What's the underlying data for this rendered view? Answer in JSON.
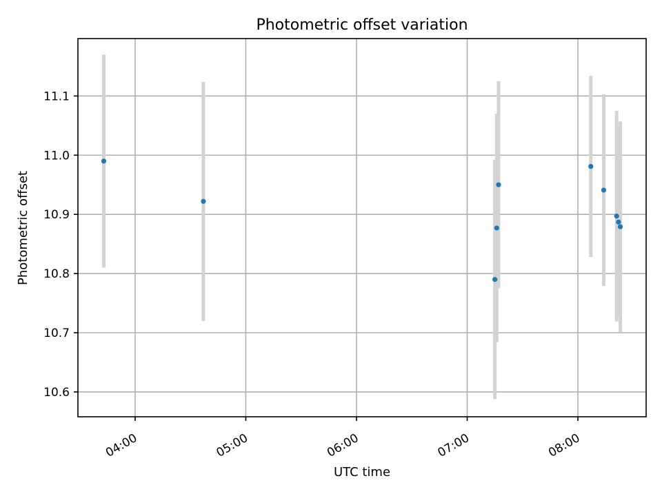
{
  "chart_data": {
    "type": "scatter",
    "title": "Photometric offset variation",
    "xlabel": "UTC time",
    "ylabel": "Photometric offset",
    "xlim": [
      "03:29",
      "08:37"
    ],
    "ylim": [
      10.558,
      11.197
    ],
    "xticks": [
      "04:00",
      "05:00",
      "06:00",
      "07:00",
      "08:00"
    ],
    "yticks": [
      "10.6",
      "10.7",
      "10.8",
      "10.9",
      "11.0",
      "11.1"
    ],
    "grid": true,
    "point_color": "#1f77b4",
    "errorbar_color": "#d3d3d3",
    "points": [
      {
        "x": "03:43",
        "y": 10.99,
        "err": 0.18
      },
      {
        "x": "04:37",
        "y": 10.922,
        "err": 0.202
      },
      {
        "x": "07:15",
        "y": 10.79,
        "err": 0.202
      },
      {
        "x": "07:16",
        "y": 10.877,
        "err": 0.193
      },
      {
        "x": "07:17",
        "y": 10.95,
        "err": 0.175
      },
      {
        "x": "08:07",
        "y": 10.981,
        "err": 0.153
      },
      {
        "x": "08:14",
        "y": 10.941,
        "err": 0.162
      },
      {
        "x": "08:21",
        "y": 10.897,
        "err": 0.178
      },
      {
        "x": "08:22",
        "y": 10.887,
        "err": 0.16
      },
      {
        "x": "08:23",
        "y": 10.879,
        "err": 0.178
      }
    ]
  }
}
